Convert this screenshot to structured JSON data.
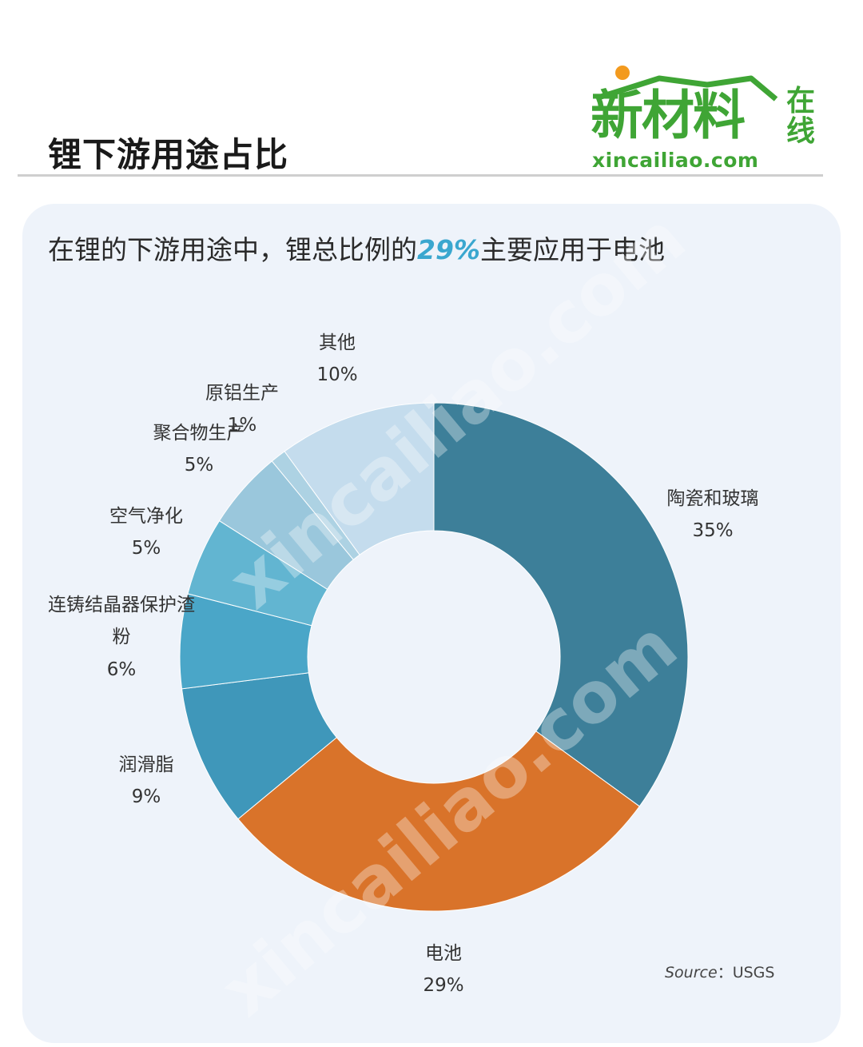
{
  "page": {
    "title": "锂下游用途占比",
    "subtitle_prefix": "在锂的下游用途中，锂总比例的",
    "subtitle_highlight": "29%",
    "subtitle_suffix": "主要应用于电池"
  },
  "logo": {
    "main": "新材料",
    "side": "在线",
    "url": "xincailiao.com",
    "color": "#3fa535",
    "accent": "#f39a1e"
  },
  "watermark": "xincailiao.com",
  "source": {
    "label": "Source",
    "separator": "：",
    "value": "USGS"
  },
  "chart_data": {
    "type": "pie",
    "donut": true,
    "start": "top, clockwise",
    "series": [
      {
        "name": "陶瓷和玻璃",
        "value": 35,
        "label": "35%",
        "color": "#3d7f99"
      },
      {
        "name": "电池",
        "value": 29,
        "label": "29%",
        "color": "#d9732a"
      },
      {
        "name": "润滑脂",
        "value": 9,
        "label": "9%",
        "color": "#3f97ba"
      },
      {
        "name": "连铸结晶器保护渣粉",
        "value": 6,
        "label": "6%",
        "color": "#4aa6c8"
      },
      {
        "name": "空气净化",
        "value": 5,
        "label": "5%",
        "color": "#62b5d1"
      },
      {
        "name": "聚合物生产",
        "value": 5,
        "label": "5%",
        "color": "#9ac7dc"
      },
      {
        "name": "原铝生产",
        "value": 1,
        "label": "1%",
        "color": "#add2e3"
      },
      {
        "name": "其他",
        "value": 10,
        "label": "10%",
        "color": "#c4dced"
      }
    ]
  }
}
